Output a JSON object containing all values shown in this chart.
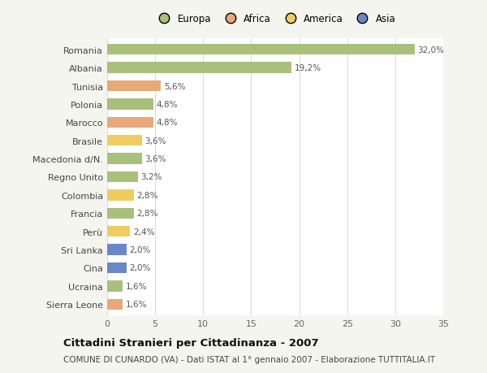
{
  "countries": [
    "Romania",
    "Albania",
    "Tunisia",
    "Polonia",
    "Marocco",
    "Brasile",
    "Macedonia d/N.",
    "Regno Unito",
    "Colombia",
    "Francia",
    "Perù",
    "Sri Lanka",
    "Cina",
    "Ucraina",
    "Sierra Leone"
  ],
  "values": [
    32.0,
    19.2,
    5.6,
    4.8,
    4.8,
    3.6,
    3.6,
    3.2,
    2.8,
    2.8,
    2.4,
    2.0,
    2.0,
    1.6,
    1.6
  ],
  "labels": [
    "32,0%",
    "19,2%",
    "5,6%",
    "4,8%",
    "4,8%",
    "3,6%",
    "3,6%",
    "3,2%",
    "2,8%",
    "2,8%",
    "2,4%",
    "2,0%",
    "2,0%",
    "1,6%",
    "1,6%"
  ],
  "continents": [
    "Europa",
    "Europa",
    "Africa",
    "Europa",
    "Africa",
    "America",
    "Europa",
    "Europa",
    "America",
    "Europa",
    "America",
    "Asia",
    "Asia",
    "Europa",
    "Africa"
  ],
  "colors": {
    "Europa": "#a8c07a",
    "Africa": "#e8a878",
    "America": "#f0cc60",
    "Asia": "#6888c8"
  },
  "xlim": [
    0,
    35
  ],
  "xticks": [
    0,
    5,
    10,
    15,
    20,
    25,
    30,
    35
  ],
  "title": "Cittadini Stranieri per Cittadinanza - 2007",
  "subtitle": "COMUNE DI CUNARDO (VA) - Dati ISTAT al 1° gennaio 2007 - Elaborazione TUTTITALIA.IT",
  "background_color": "#f5f5f0",
  "plot_bg_color": "#ffffff",
  "grid_color": "#d8d8d8",
  "bar_height": 0.6,
  "title_fontsize": 9.5,
  "subtitle_fontsize": 7.5,
  "label_fontsize": 7.5,
  "tick_fontsize": 8,
  "legend_fontsize": 8.5
}
